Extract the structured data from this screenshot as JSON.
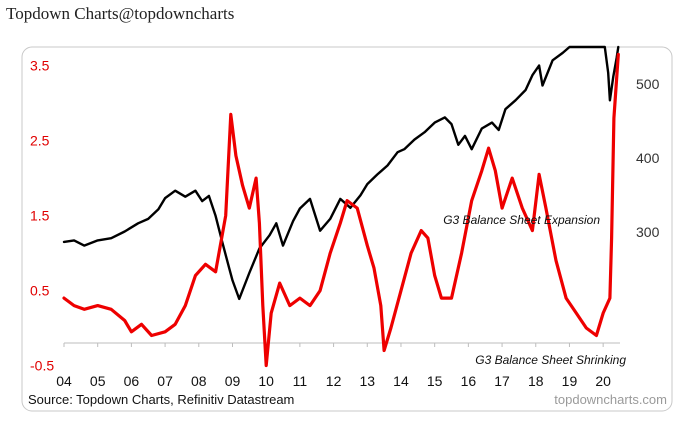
{
  "header": {
    "title": "Topdown Charts@topdowncharts"
  },
  "chart_data": {
    "type": "line",
    "x_range": [
      2004,
      2020.5
    ],
    "x_ticks": [
      {
        "value": 2004,
        "label": "04"
      },
      {
        "value": 2005,
        "label": "05"
      },
      {
        "value": 2006,
        "label": "06"
      },
      {
        "value": 2007,
        "label": "07"
      },
      {
        "value": 2008,
        "label": "08"
      },
      {
        "value": 2009,
        "label": "09"
      },
      {
        "value": 2010,
        "label": "10"
      },
      {
        "value": 2011,
        "label": "11"
      },
      {
        "value": 2012,
        "label": "12"
      },
      {
        "value": 2013,
        "label": "13"
      },
      {
        "value": 2014,
        "label": "14"
      },
      {
        "value": 2015,
        "label": "15"
      },
      {
        "value": 2016,
        "label": "16"
      },
      {
        "value": 2017,
        "label": "17"
      },
      {
        "value": 2018,
        "label": "18"
      },
      {
        "value": 2019,
        "label": "19"
      },
      {
        "value": 2020,
        "label": "20"
      }
    ],
    "left_axis": {
      "color": "#e00000",
      "range": [
        -0.6,
        3.75
      ],
      "ticks": [
        {
          "value": 3.5,
          "label": "3.5"
        },
        {
          "value": 2.5,
          "label": "2.5"
        },
        {
          "value": 1.5,
          "label": "1.5"
        },
        {
          "value": 0.5,
          "label": "0.5"
        },
        {
          "value": -0.5,
          "label": "-0.5"
        }
      ]
    },
    "right_axis": {
      "color": "#333333",
      "range": [
        110,
        550
      ],
      "ticks": [
        {
          "value": 500,
          "label": "500"
        },
        {
          "value": 400,
          "label": "400"
        },
        {
          "value": 300,
          "label": "300"
        }
      ]
    },
    "series": [
      {
        "axis": "right",
        "color": "#000000",
        "points": [
          [
            2004.0,
            287
          ],
          [
            2004.3,
            289
          ],
          [
            2004.6,
            282
          ],
          [
            2005.0,
            289
          ],
          [
            2005.4,
            292
          ],
          [
            2005.8,
            301
          ],
          [
            2006.2,
            312
          ],
          [
            2006.5,
            318
          ],
          [
            2006.8,
            331
          ],
          [
            2007.0,
            346
          ],
          [
            2007.3,
            356
          ],
          [
            2007.6,
            348
          ],
          [
            2007.9,
            356
          ],
          [
            2008.1,
            342
          ],
          [
            2008.3,
            349
          ],
          [
            2008.5,
            322
          ],
          [
            2008.7,
            286
          ],
          [
            2008.9,
            252
          ],
          [
            2009.0,
            235
          ],
          [
            2009.2,
            210
          ],
          [
            2009.5,
            245
          ],
          [
            2009.8,
            278
          ],
          [
            2010.1,
            296
          ],
          [
            2010.3,
            312
          ],
          [
            2010.5,
            282
          ],
          [
            2010.8,
            315
          ],
          [
            2011.0,
            332
          ],
          [
            2011.3,
            345
          ],
          [
            2011.6,
            302
          ],
          [
            2011.9,
            318
          ],
          [
            2012.2,
            345
          ],
          [
            2012.5,
            333
          ],
          [
            2012.8,
            350
          ],
          [
            2013.0,
            365
          ],
          [
            2013.3,
            378
          ],
          [
            2013.6,
            390
          ],
          [
            2013.9,
            408
          ],
          [
            2014.1,
            412
          ],
          [
            2014.4,
            425
          ],
          [
            2014.7,
            435
          ],
          [
            2015.0,
            448
          ],
          [
            2015.3,
            455
          ],
          [
            2015.5,
            446
          ],
          [
            2015.7,
            418
          ],
          [
            2015.9,
            430
          ],
          [
            2016.1,
            412
          ],
          [
            2016.4,
            440
          ],
          [
            2016.7,
            448
          ],
          [
            2016.9,
            438
          ],
          [
            2017.1,
            466
          ],
          [
            2017.4,
            478
          ],
          [
            2017.7,
            492
          ],
          [
            2017.9,
            512
          ],
          [
            2018.1,
            525
          ],
          [
            2018.2,
            498
          ],
          [
            2018.5,
            532
          ],
          [
            2018.8,
            542
          ],
          [
            2019.0,
            550
          ],
          [
            2019.2,
            550
          ],
          [
            2019.5,
            550
          ],
          [
            2019.8,
            550
          ],
          [
            2020.05,
            550
          ],
          [
            2020.15,
            515
          ],
          [
            2020.2,
            478
          ],
          [
            2020.3,
            510
          ],
          [
            2020.4,
            535
          ],
          [
            2020.45,
            550
          ]
        ]
      },
      {
        "axis": "left",
        "color": "#ee0000",
        "points": [
          [
            2004.0,
            0.4
          ],
          [
            2004.3,
            0.3
          ],
          [
            2004.6,
            0.25
          ],
          [
            2005.0,
            0.3
          ],
          [
            2005.4,
            0.25
          ],
          [
            2005.8,
            0.1
          ],
          [
            2006.0,
            -0.05
          ],
          [
            2006.3,
            0.05
          ],
          [
            2006.6,
            -0.1
          ],
          [
            2007.0,
            -0.05
          ],
          [
            2007.3,
            0.05
          ],
          [
            2007.6,
            0.3
          ],
          [
            2007.9,
            0.7
          ],
          [
            2008.2,
            0.85
          ],
          [
            2008.5,
            0.75
          ],
          [
            2008.8,
            1.5
          ],
          [
            2008.95,
            2.85
          ],
          [
            2009.1,
            2.3
          ],
          [
            2009.3,
            1.9
          ],
          [
            2009.5,
            1.6
          ],
          [
            2009.7,
            2.0
          ],
          [
            2009.8,
            1.4
          ],
          [
            2009.9,
            0.3
          ],
          [
            2010.0,
            -0.5
          ],
          [
            2010.15,
            0.2
          ],
          [
            2010.4,
            0.6
          ],
          [
            2010.7,
            0.3
          ],
          [
            2011.0,
            0.4
          ],
          [
            2011.3,
            0.3
          ],
          [
            2011.6,
            0.5
          ],
          [
            2011.9,
            1.0
          ],
          [
            2012.2,
            1.4
          ],
          [
            2012.4,
            1.7
          ],
          [
            2012.7,
            1.6
          ],
          [
            2013.0,
            1.1
          ],
          [
            2013.2,
            0.8
          ],
          [
            2013.4,
            0.3
          ],
          [
            2013.5,
            -0.3
          ],
          [
            2013.7,
            0.0
          ],
          [
            2014.0,
            0.5
          ],
          [
            2014.3,
            1.0
          ],
          [
            2014.6,
            1.3
          ],
          [
            2014.8,
            1.2
          ],
          [
            2015.0,
            0.7
          ],
          [
            2015.2,
            0.4
          ],
          [
            2015.5,
            0.4
          ],
          [
            2015.8,
            1.0
          ],
          [
            2016.1,
            1.7
          ],
          [
            2016.4,
            2.1
          ],
          [
            2016.6,
            2.4
          ],
          [
            2016.8,
            2.1
          ],
          [
            2017.0,
            1.6
          ],
          [
            2017.3,
            2.0
          ],
          [
            2017.6,
            1.6
          ],
          [
            2017.9,
            1.3
          ],
          [
            2018.1,
            2.05
          ],
          [
            2018.3,
            1.6
          ],
          [
            2018.6,
            0.9
          ],
          [
            2018.9,
            0.4
          ],
          [
            2019.2,
            0.2
          ],
          [
            2019.5,
            0.0
          ],
          [
            2019.8,
            -0.1
          ],
          [
            2020.0,
            0.2
          ],
          [
            2020.2,
            0.4
          ],
          [
            2020.25,
            1.2
          ],
          [
            2020.32,
            2.8
          ],
          [
            2020.45,
            3.65
          ]
        ]
      }
    ],
    "annotations": [
      {
        "text": "G3 Balance Sheet Expansion",
        "x": 2017.6,
        "y": 2.9
      },
      {
        "text": "G3 Balance Sheet Shrinking",
        "x": 2017.7,
        "y": -0.45
      }
    ],
    "source": "Source: Topdown Charts, Refinitiv Datastream",
    "watermark": "topdowncharts.com"
  }
}
